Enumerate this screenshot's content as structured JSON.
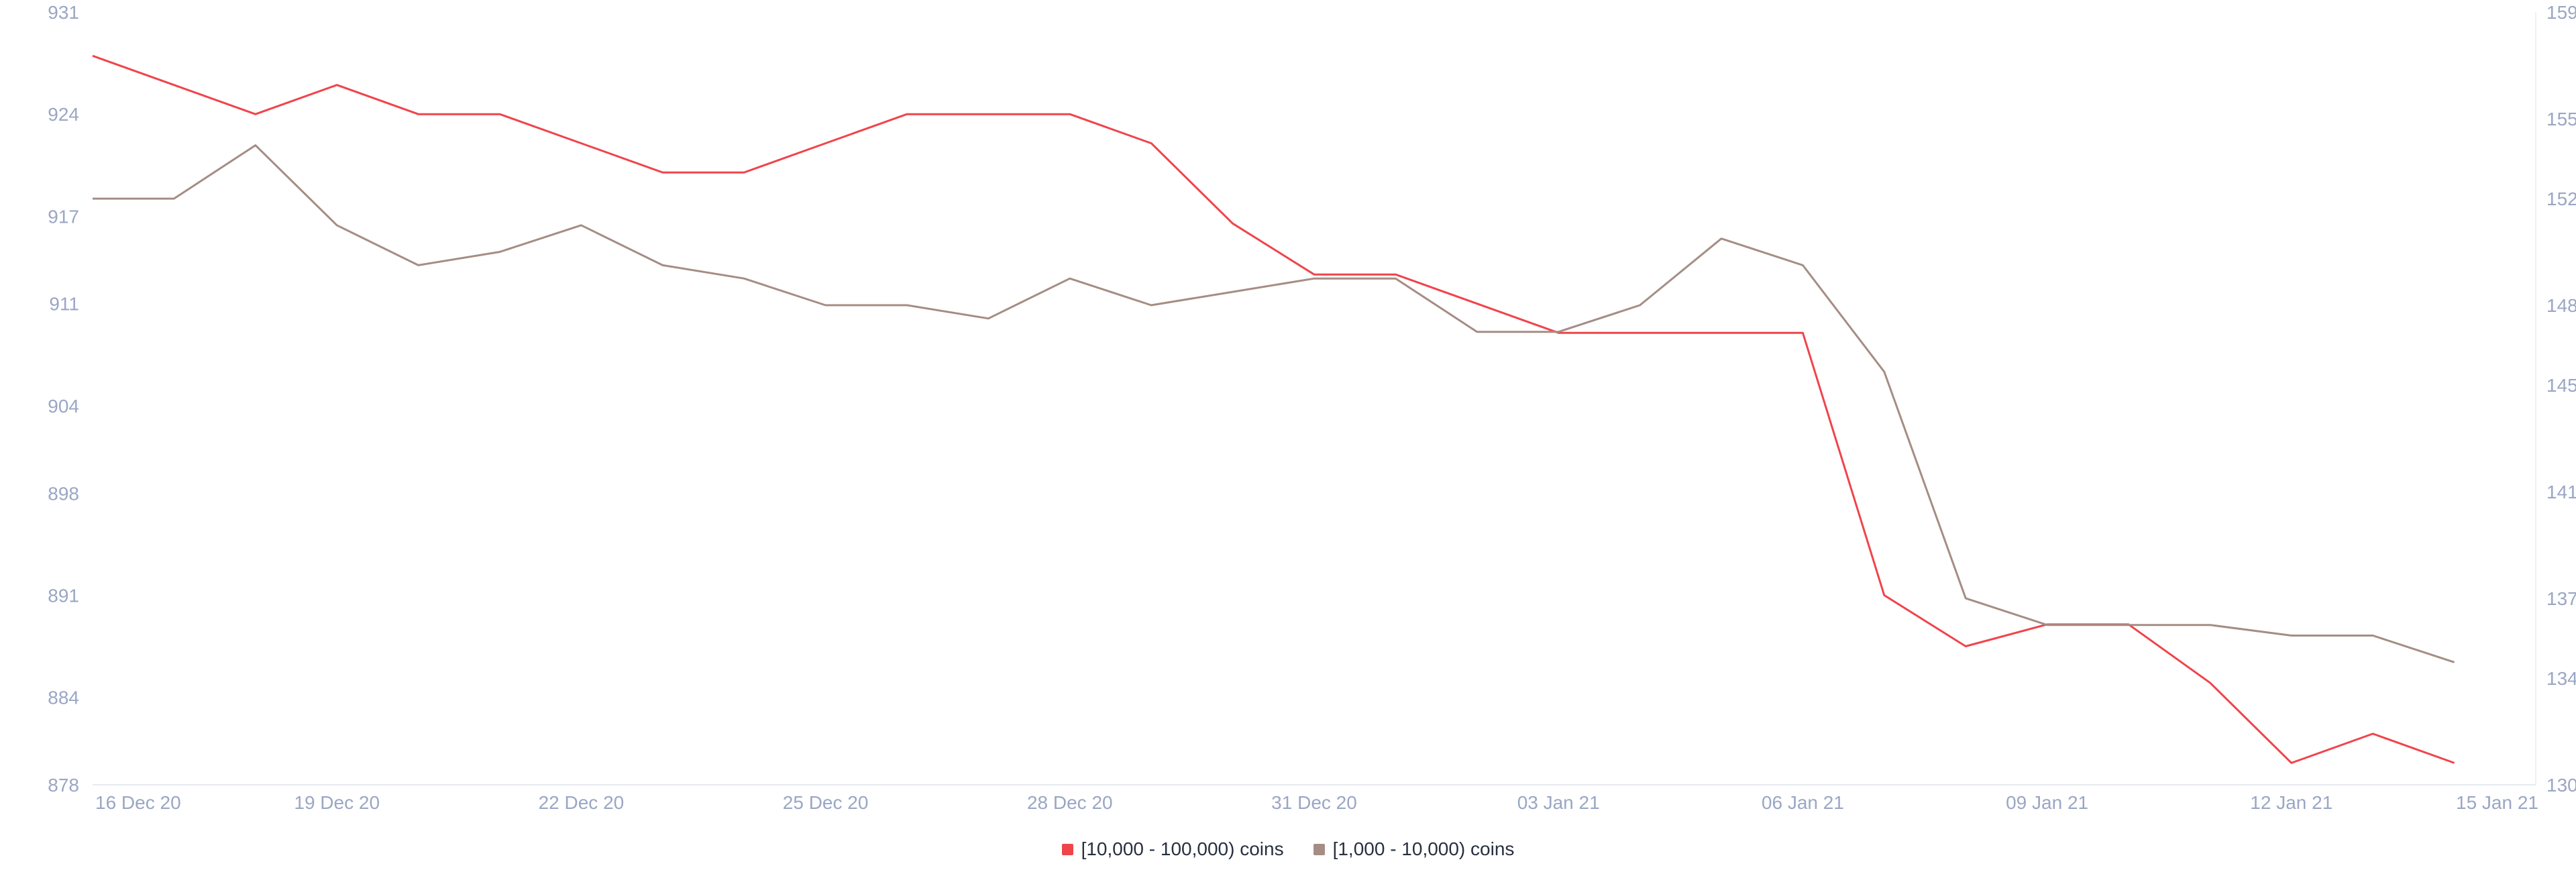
{
  "chart_data": {
    "type": "line",
    "x": [
      "2020-12-16",
      "2020-12-17",
      "2020-12-18",
      "2020-12-19",
      "2020-12-20",
      "2020-12-21",
      "2020-12-22",
      "2020-12-23",
      "2020-12-24",
      "2020-12-25",
      "2020-12-26",
      "2020-12-27",
      "2020-12-28",
      "2020-12-29",
      "2020-12-30",
      "2020-12-31",
      "2021-01-01",
      "2021-01-02",
      "2021-01-03",
      "2021-01-04",
      "2021-01-05",
      "2021-01-06",
      "2021-01-07",
      "2021-01-08",
      "2021-01-09",
      "2021-01-10",
      "2021-01-11",
      "2021-01-12",
      "2021-01-13",
      "2021-01-14"
    ],
    "x_ticks": [
      {
        "date": "2020-12-16",
        "label": "16 Dec 20"
      },
      {
        "date": "2020-12-19",
        "label": "19 Dec 20"
      },
      {
        "date": "2020-12-22",
        "label": "22 Dec 20"
      },
      {
        "date": "2020-12-25",
        "label": "25 Dec 20"
      },
      {
        "date": "2020-12-28",
        "label": "28 Dec 20"
      },
      {
        "date": "2020-12-31",
        "label": "31 Dec 20"
      },
      {
        "date": "2021-01-03",
        "label": "03 Jan 21"
      },
      {
        "date": "2021-01-06",
        "label": "06 Jan 21"
      },
      {
        "date": "2021-01-09",
        "label": "09 Jan 21"
      },
      {
        "date": "2021-01-12",
        "label": "12 Jan 21"
      },
      {
        "date": "2021-01-15",
        "label": "15 Jan 21"
      }
    ],
    "xlim": [
      "2020-12-16",
      "2021-01-15"
    ],
    "y_left": {
      "ylim": [
        878,
        931
      ],
      "ticks": [
        "931",
        "924",
        "917",
        "911",
        "904",
        "898",
        "891",
        "884",
        "878"
      ]
    },
    "y_right": {
      "ylim": [
        130,
        159
      ],
      "ticks": [
        "159",
        "155",
        "152",
        "148",
        "145",
        "141",
        "137",
        "134",
        "130"
      ]
    },
    "series": [
      {
        "name": "[10,000 - 100,000) coins",
        "axis": "left",
        "color": "#f0444b",
        "values": [
          928,
          926,
          924,
          926,
          924,
          924,
          922,
          920,
          920,
          922,
          924,
          924,
          924,
          922,
          916.5,
          913,
          913,
          911,
          909,
          909,
          909,
          909,
          891,
          887.5,
          889,
          889,
          885,
          879.5,
          881.5,
          879.5
        ]
      },
      {
        "name": "[1,000 - 10,000) coins",
        "axis": "right",
        "color": "#a58d84",
        "values": [
          152,
          152,
          154,
          151,
          149.5,
          150,
          151,
          149.5,
          149,
          148,
          148,
          147.5,
          149,
          148,
          148.5,
          149,
          149,
          147,
          147,
          148,
          150.5,
          149.5,
          145.5,
          137,
          136,
          136,
          136,
          135.6,
          135.6,
          134.6
        ]
      }
    ],
    "grid": false,
    "legend_position": "bottom-center"
  }
}
